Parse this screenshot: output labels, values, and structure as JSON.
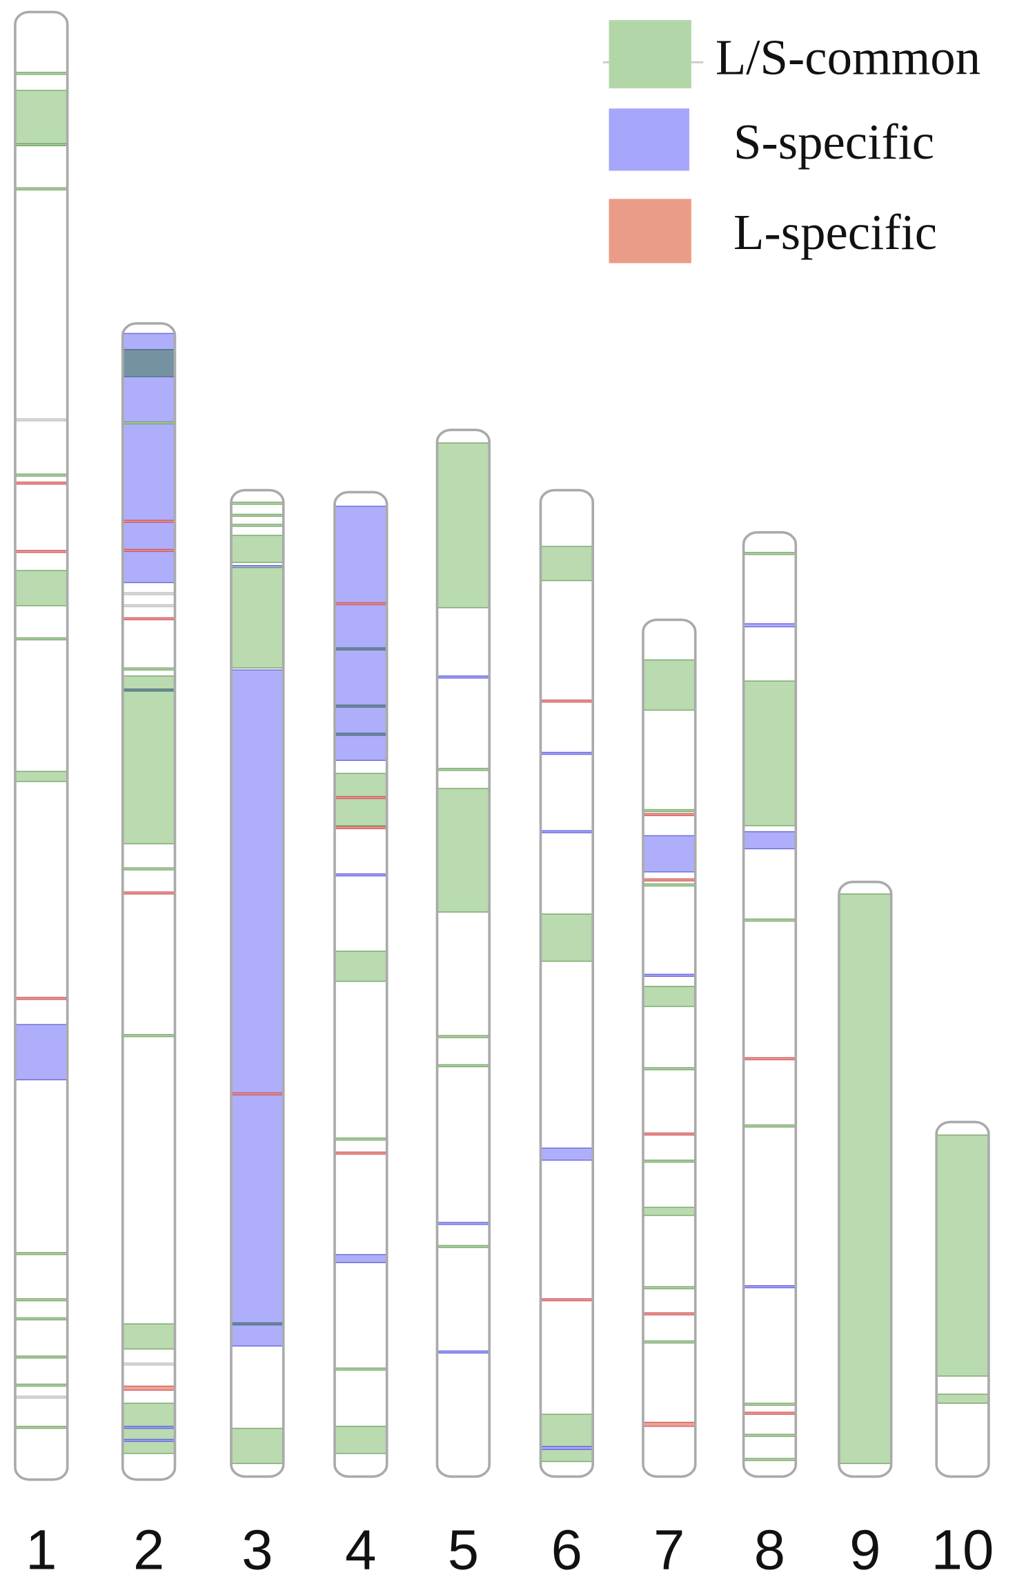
{
  "legend": [
    {
      "label": "L/S-common"
    },
    {
      "label": "S-specific"
    },
    {
      "label": "L-specific"
    }
  ],
  "chromosomes": [
    {
      "label": "1"
    },
    {
      "label": "2"
    },
    {
      "label": "3"
    },
    {
      "label": "4"
    },
    {
      "label": "5"
    },
    {
      "label": "6"
    },
    {
      "label": "7"
    },
    {
      "label": "8"
    },
    {
      "label": "9"
    },
    {
      "label": "10"
    }
  ]
}
